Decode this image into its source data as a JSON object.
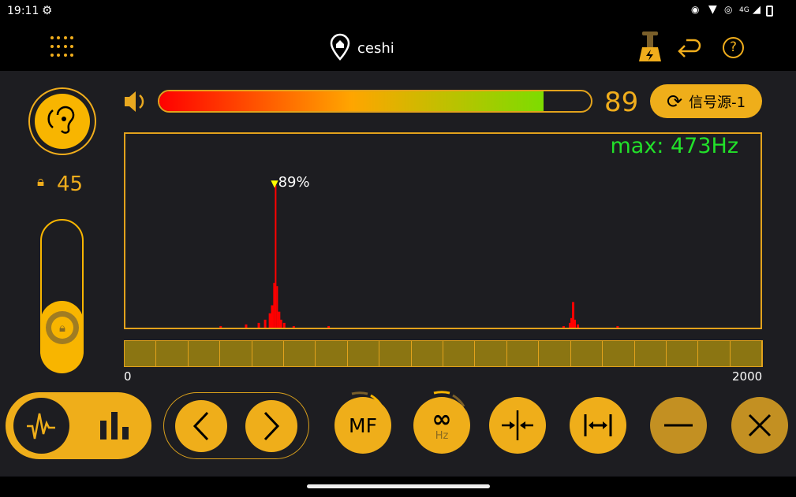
{
  "status": {
    "time": "19:11",
    "network": "4G"
  },
  "header": {
    "title": "ceshi",
    "icons": [
      "location-pin-icon",
      "battery-charge-icon",
      "back-icon",
      "help-icon"
    ]
  },
  "ear_button": {
    "icon": "ear-icon"
  },
  "lock_value": "45",
  "volume": {
    "value": "89",
    "level_percent": 89,
    "colors": [
      "#ff0000",
      "#ffa500",
      "#7ddc00"
    ]
  },
  "source_button": {
    "label": "信号源-1"
  },
  "chart_data": {
    "type": "bar",
    "xlim": [
      0,
      2000
    ],
    "ylim": [
      0,
      100
    ],
    "x_tick_labels": [
      "0",
      "2000"
    ],
    "peak_label": "89%",
    "max_label": "max: 473Hz",
    "series_color": "#ff0000",
    "points": [
      [
        300,
        1
      ],
      [
        380,
        2
      ],
      [
        420,
        3
      ],
      [
        440,
        5
      ],
      [
        455,
        9
      ],
      [
        462,
        14
      ],
      [
        468,
        28
      ],
      [
        473,
        89
      ],
      [
        478,
        26
      ],
      [
        484,
        10
      ],
      [
        490,
        5
      ],
      [
        500,
        3
      ],
      [
        530,
        1
      ],
      [
        640,
        1
      ],
      [
        1380,
        1
      ],
      [
        1400,
        3
      ],
      [
        1405,
        6
      ],
      [
        1410,
        16
      ],
      [
        1415,
        5
      ],
      [
        1425,
        2
      ],
      [
        1550,
        1
      ]
    ]
  },
  "bottom": {
    "mf_label": "MF",
    "hz_label": "Hz",
    "infinity": "∞"
  }
}
